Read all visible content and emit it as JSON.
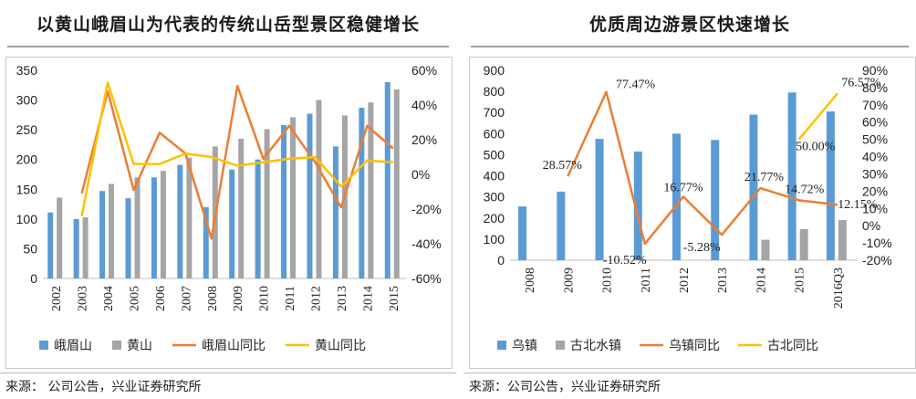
{
  "left": {
    "title": "以黄山峨眉山为代表的传统山岳型景区稳健增长",
    "source": "来源： 公司公告，兴业证券研究所",
    "chart_data": {
      "type": "bar",
      "categories": [
        "2002",
        "2003",
        "2004",
        "2005",
        "2006",
        "2007",
        "2008",
        "2009",
        "2010",
        "2011",
        "2012",
        "2013",
        "2014",
        "2015"
      ],
      "ylim": [
        0,
        350
      ],
      "yticks": [
        "0",
        "50",
        "100",
        "150",
        "200",
        "250",
        "300",
        "350"
      ],
      "y2lim": [
        -60,
        60
      ],
      "y2ticks": [
        "-60%",
        "-40%",
        "-20%",
        "0%",
        "20%",
        "40%",
        "60%"
      ],
      "series": [
        {
          "name": "峨眉山",
          "kind": "bar",
          "color": "#5b9bd5",
          "values": [
            111,
            100,
            147,
            135,
            170,
            191,
            120,
            183,
            200,
            258,
            277,
            222,
            287,
            330
          ]
        },
        {
          "name": "黄山",
          "kind": "bar",
          "color": "#a5a5a5",
          "values": [
            136,
            103,
            159,
            170,
            181,
            203,
            222,
            235,
            251,
            271,
            300,
            274,
            296,
            318
          ]
        },
        {
          "name": "峨眉山同比",
          "kind": "line",
          "axis": "y2",
          "color": "#ed7d31",
          "values": [
            null,
            -11,
            48,
            -9,
            24,
            12,
            -37,
            51,
            9,
            28,
            7,
            -19,
            28,
            15
          ]
        },
        {
          "name": "黄山同比",
          "kind": "line",
          "axis": "y2",
          "color": "#ffc000",
          "values": [
            null,
            -24,
            53,
            6,
            6,
            12,
            10,
            5,
            7,
            9,
            10,
            -7,
            8,
            7
          ]
        }
      ]
    }
  },
  "right": {
    "title": "优质周边游景区快速增长",
    "source": "来源：公司公告，兴业证券研究所",
    "chart_data": {
      "type": "bar",
      "categories": [
        "2008",
        "2009",
        "2010",
        "2011",
        "2012",
        "2013",
        "2014",
        "2015",
        "2016Q3"
      ],
      "ylim": [
        0,
        900
      ],
      "yticks": [
        "0",
        "100",
        "200",
        "300",
        "400",
        "500",
        "600",
        "700",
        "800",
        "900"
      ],
      "y2lim": [
        -20,
        90
      ],
      "y2ticks": [
        "-20%",
        "-10%",
        "0%",
        "10%",
        "20%",
        "30%",
        "40%",
        "50%",
        "60%",
        "70%",
        "80%",
        "90%"
      ],
      "series": [
        {
          "name": "乌镇",
          "kind": "bar",
          "color": "#5b9bd5",
          "values": [
            255,
            325,
            575,
            515,
            600,
            570,
            690,
            795,
            705
          ]
        },
        {
          "name": "古北水镇",
          "kind": "bar",
          "color": "#a5a5a5",
          "values": [
            null,
            null,
            null,
            null,
            null,
            null,
            97,
            147,
            190
          ]
        },
        {
          "name": "乌镇同比",
          "kind": "line",
          "axis": "y2",
          "color": "#ed7d31",
          "values": [
            null,
            28.57,
            77.47,
            -10.52,
            16.77,
            -5.28,
            21.77,
            14.72,
            12.15
          ],
          "labels": [
            "",
            "28.57%",
            "77.47%",
            "-10.52%",
            "16.77%",
            "-5.28%",
            "21.77%",
            "14.72%",
            "12.15%"
          ]
        },
        {
          "name": "古北同比",
          "kind": "line",
          "axis": "y2",
          "color": "#ffc000",
          "values": [
            null,
            null,
            null,
            null,
            null,
            null,
            null,
            50.0,
            76.57
          ],
          "labels": [
            "",
            "",
            "",
            "",
            "",
            "",
            "",
            "50.00%",
            "76.57%"
          ]
        }
      ]
    }
  }
}
